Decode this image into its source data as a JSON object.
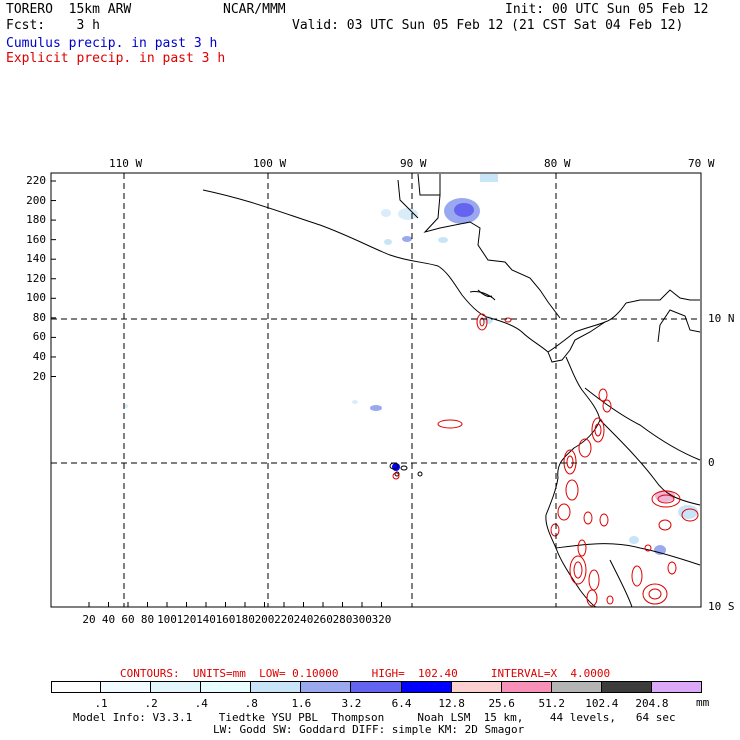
{
  "header": {
    "model": "TORERO  15km ARW",
    "org": "NCAR/MMM",
    "init": "Init: 00 UTC Sun 05 Feb 12",
    "fcst": "Fcst:    3 h",
    "valid": "Valid: 03 UTC Sun 05 Feb 12 (21 CST Sat 04 Feb 12)",
    "field1": "Cumulus precip. in past 3 h",
    "field2": "Explicit precip. in past 3 h",
    "field1_color": "#0000cc",
    "field2_color": "#dd0000"
  },
  "axes": {
    "top_lon_labels": [
      "110 W",
      "100 W",
      "90 W",
      "80 W",
      "70 W"
    ],
    "right_lat_labels": [
      "10 N",
      "0",
      "10 S"
    ],
    "left_y_ticks": [
      "220",
      "200",
      "180",
      "160",
      "140",
      "120",
      "100",
      "80",
      "60",
      "40",
      "20"
    ],
    "bottom_x_ticks": [
      "20",
      "40",
      "60",
      "80",
      "100",
      "120",
      "140",
      "160",
      "180",
      "200",
      "220",
      "240",
      "260",
      "280",
      "300",
      "320"
    ]
  },
  "contour_info": {
    "text": "CONTOURS:  UNITS=mm  LOW= 0.10000     HIGH=  102.40     INTERVAL=X  4.0000",
    "color": "#dd0000"
  },
  "colorbar": {
    "labels": [
      ".1",
      ".2",
      ".4",
      ".8",
      "1.6",
      "3.2",
      "6.4",
      "12.8",
      "25.6",
      "51.2",
      "102.4",
      "204.8"
    ],
    "unit": "mm",
    "colors": [
      "#ffffff",
      "#f2fbff",
      "#e3f6fb",
      "#e8fdfd",
      "#c8e4f8",
      "#9aa8f0",
      "#6464f0",
      "#0000ff",
      "#fcd0d0",
      "#f890b8",
      "#b4b4b4",
      "#3c3c3c",
      "#dca8f8"
    ]
  },
  "footer": {
    "line1": "Model Info: V3.3.1    Tiedtke YSU PBL  Thompson     Noah LSM  15 km,    44 levels,   64 sec",
    "line2": "LW: Godd SW: Goddard DIFF: simple KM: 2D Smagor"
  }
}
